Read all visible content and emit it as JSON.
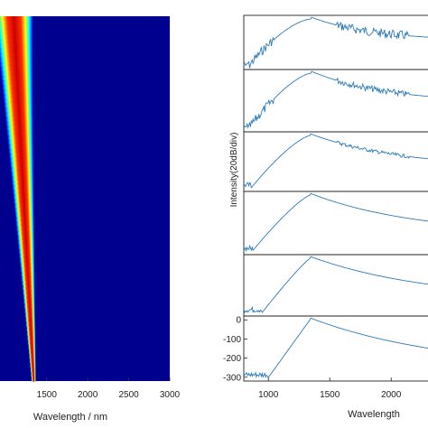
{
  "chart_data": [
    {
      "type": "heatmap",
      "xlabel": "Wavelength / nm",
      "xticks": [
        1500,
        2000,
        2500,
        3000
      ],
      "xlim": [
        930,
        3000
      ],
      "colormap": "jet",
      "description_band": {
        "center_top": 1100,
        "center_bottom": 1340,
        "halfwidth_top": 230,
        "halfwidth_bottom": 28
      }
    },
    {
      "type": "line",
      "ylabel": "Intensity(20dB/div)",
      "xlabel": "Wavelength",
      "xticks": [
        1000,
        1500,
        2000
      ],
      "xlim": [
        800,
        2300
      ],
      "bottom_yticks": [
        0,
        -100,
        -200,
        -300
      ],
      "bottom_ylim": [
        -320,
        20
      ],
      "panels": [
        {
          "name": "panel-1",
          "peak": 1350,
          "left_edge": 840,
          "right_edge": 2300,
          "level": 0.88
        },
        {
          "name": "panel-2",
          "peak": 1350,
          "left_edge": 840,
          "right_edge": 2300,
          "level": 0.85
        },
        {
          "name": "panel-3",
          "peak": 1340,
          "left_edge": 860,
          "right_edge": 2300,
          "level": 0.8
        },
        {
          "name": "panel-4",
          "peak": 1340,
          "left_edge": 870,
          "right_edge": 2300,
          "level": 0.75
        },
        {
          "name": "panel-5",
          "peak": 1340,
          "left_edge": 950,
          "right_edge": 2300,
          "level": 0.7
        },
        {
          "name": "panel-6",
          "peak": 1340,
          "left_edge": 1000,
          "right_edge": 2300,
          "level": 0.65
        }
      ]
    }
  ]
}
